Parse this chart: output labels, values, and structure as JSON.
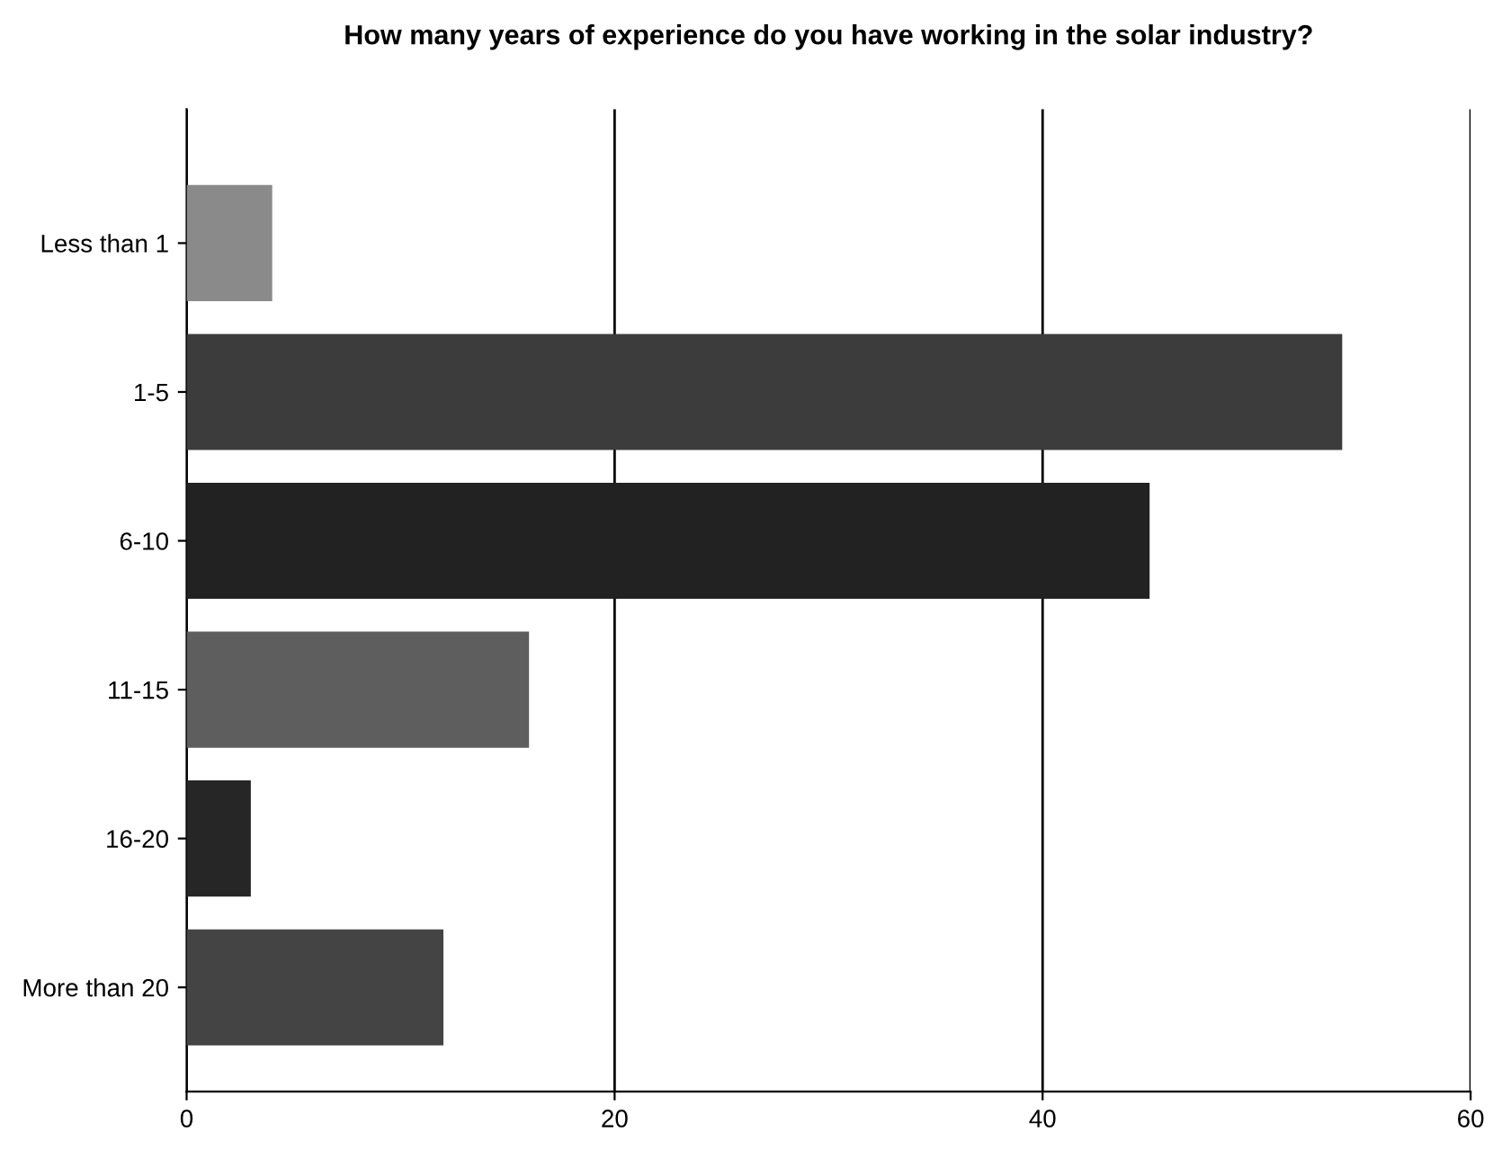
{
  "chart_data": {
    "type": "bar",
    "orientation": "horizontal",
    "title": "How many years of experience do you have working in the solar industry?",
    "categories": [
      "Less than 1",
      "1-5",
      "6-10",
      "11-15",
      "16-20",
      "More than 20"
    ],
    "values": [
      4,
      54,
      45,
      16,
      3,
      12
    ],
    "colors": [
      "#8a8a8a",
      "#3c3c3c",
      "#222222",
      "#5e5e5e",
      "#262626",
      "#444444"
    ],
    "xlim": [
      0,
      60
    ],
    "xticks": [
      0,
      20,
      40,
      60
    ],
    "grid": "x"
  }
}
